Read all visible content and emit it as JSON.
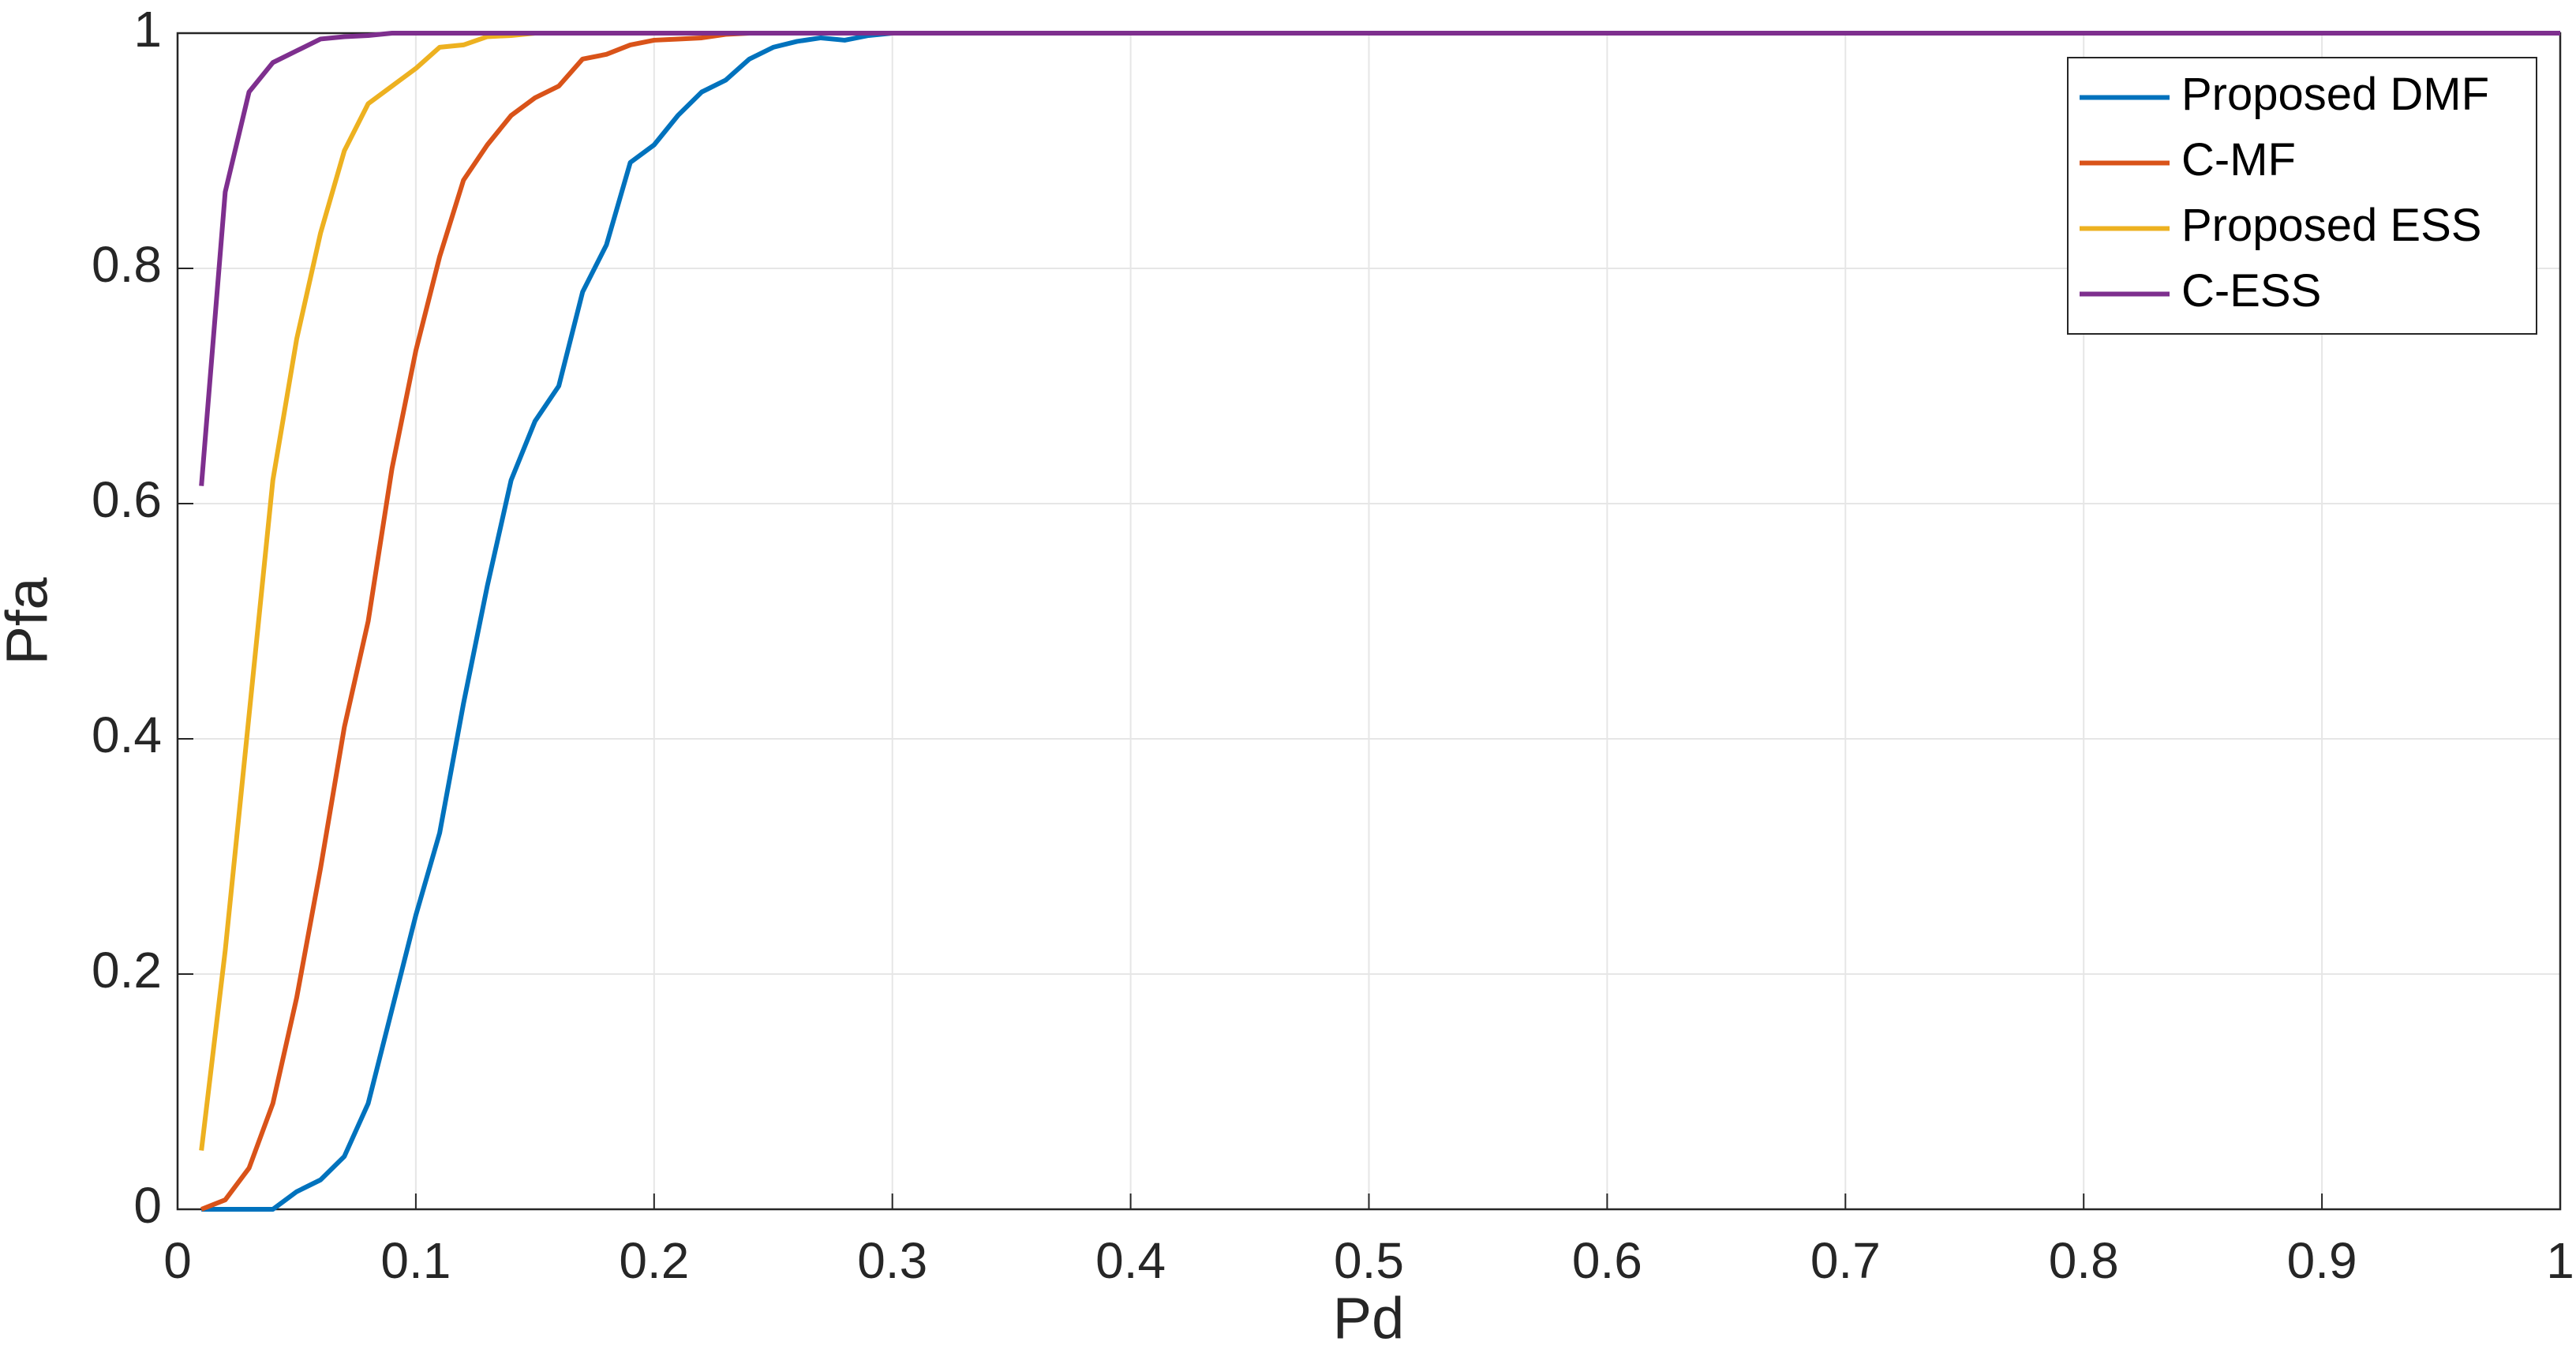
{
  "chart_data": {
    "type": "line",
    "xlabel": "Pd",
    "ylabel": "Pfa",
    "x": [
      0.01,
      0.02,
      0.03,
      0.04,
      0.05,
      0.06,
      0.07,
      0.08,
      0.09,
      0.1,
      0.11,
      0.12,
      0.13,
      0.14,
      0.15,
      0.16,
      0.17,
      0.18,
      0.19,
      0.2,
      0.21,
      0.22,
      0.23,
      0.24,
      0.25,
      0.26,
      0.27,
      0.28,
      0.29,
      0.3,
      0.31,
      0.32,
      0.33,
      0.34,
      0.35,
      0.36,
      0.37,
      0.38,
      0.39,
      0.4,
      1
    ],
    "series": [
      {
        "name": "Proposed DMF",
        "color": "#0072BD",
        "values": [
          0,
          0,
          0,
          0,
          0.015,
          0.025,
          0.045,
          0.09,
          0.17,
          0.25,
          0.32,
          0.43,
          0.53,
          0.62,
          0.67,
          0.7,
          0.78,
          0.82,
          0.89,
          0.905,
          0.93,
          0.95,
          0.96,
          0.978,
          0.988,
          0.993,
          0.996,
          0.994,
          0.998,
          1,
          1,
          1,
          1,
          1,
          1,
          1,
          1,
          1,
          1,
          1,
          1
        ]
      },
      {
        "name": "C-MF",
        "color": "#D95319",
        "values": [
          0,
          0.008,
          0.035,
          0.09,
          0.18,
          0.29,
          0.41,
          0.5,
          0.63,
          0.73,
          0.81,
          0.875,
          0.905,
          0.93,
          0.945,
          0.955,
          0.978,
          0.982,
          0.99,
          0.994,
          0.995,
          0.996,
          0.999,
          1,
          1,
          1,
          1,
          1,
          1,
          1,
          1,
          1,
          1,
          1,
          1,
          1,
          1,
          1,
          1,
          1,
          1
        ]
      },
      {
        "name": "Proposed ESS",
        "color": "#EDB120",
        "values": [
          0.05,
          0.22,
          0.42,
          0.62,
          0.74,
          0.83,
          0.9,
          0.94,
          0.955,
          0.97,
          0.988,
          0.99,
          0.997,
          0.998,
          1,
          1,
          1,
          1,
          1,
          1,
          1,
          1,
          1,
          1,
          1,
          1,
          1,
          1,
          1,
          1,
          1,
          1,
          1,
          1,
          1,
          1,
          1,
          1,
          1,
          1,
          1
        ]
      },
      {
        "name": "C-ESS",
        "color": "#7E2F8E",
        "values": [
          0.615,
          0.865,
          0.95,
          0.975,
          0.985,
          0.995,
          0.997,
          0.998,
          1,
          1,
          1,
          1,
          1,
          1,
          1,
          1,
          1,
          1,
          1,
          1,
          1,
          1,
          1,
          1,
          1,
          1,
          1,
          1,
          1,
          1,
          1,
          1,
          1,
          1,
          1,
          1,
          1,
          1,
          1,
          1,
          1
        ]
      }
    ],
    "xlim": [
      0,
      1
    ],
    "xticks": [
      0,
      0.1,
      0.2,
      0.3,
      0.4,
      0.5,
      0.6,
      0.7,
      0.8,
      0.9,
      1
    ],
    "ylim": [
      0,
      1
    ],
    "yticks": [
      0,
      0.2,
      0.4,
      0.6,
      0.8,
      1
    ],
    "grid": true,
    "legend": "northeast"
  }
}
